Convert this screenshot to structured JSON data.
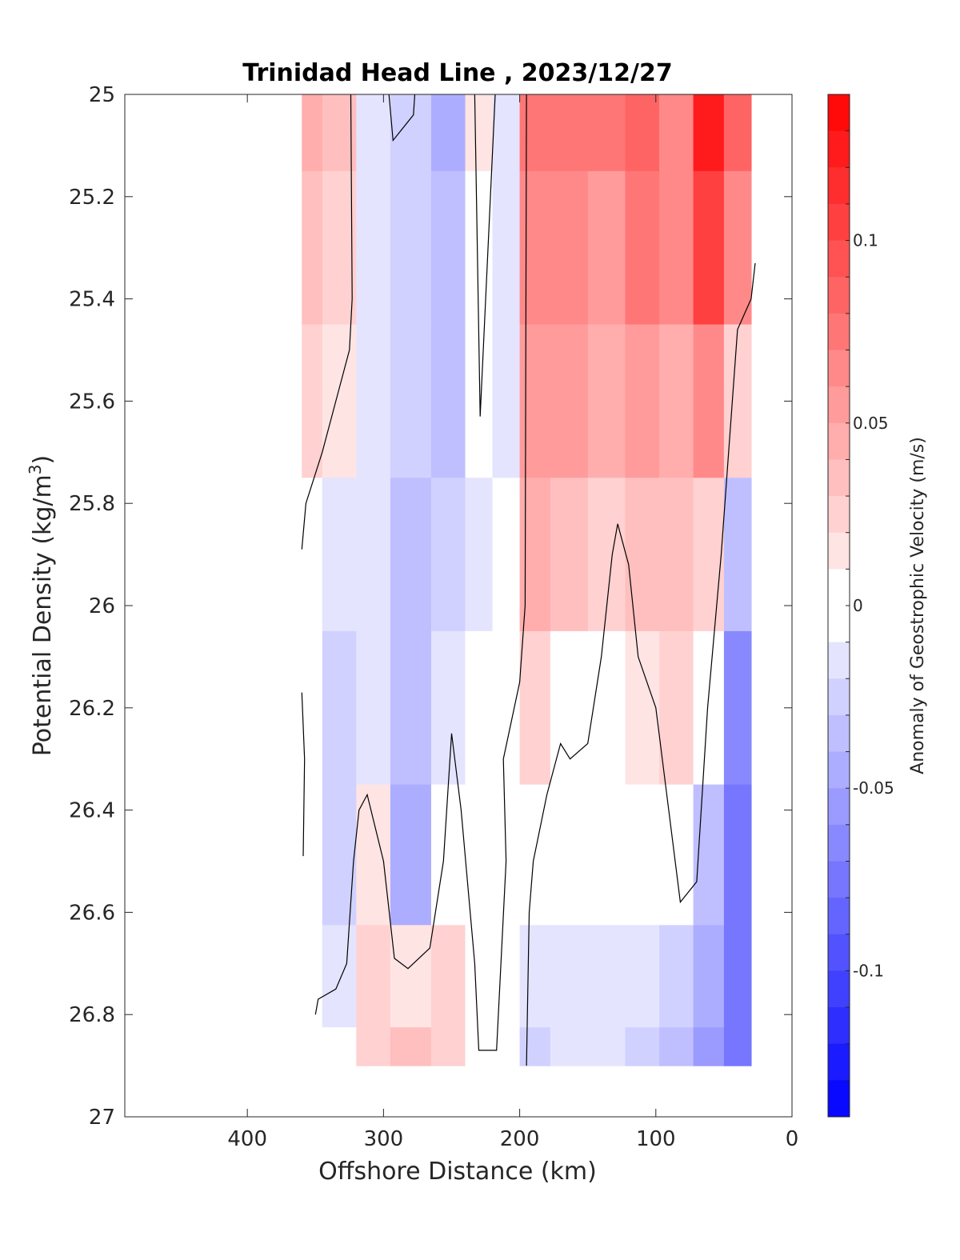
{
  "chart_data": {
    "type": "heatmap",
    "title": "Trinidad Head Line , 2023/12/27",
    "xlabel": "Offshore Distance (km)",
    "ylabel": "Potential Density (kg/m3)",
    "ylabel_base": "Potential Density (kg/m",
    "ylabel_sup": "3",
    "ylabel_end": ")",
    "colorbar_label": "Anomaly of Geostrophic Velocity (m/s)",
    "xlim": [
      490,
      0
    ],
    "ylim": [
      25,
      27
    ],
    "x_reversed": true,
    "y_reversed": true,
    "xticks": [
      400,
      300,
      200,
      100,
      0
    ],
    "xtick_labels": [
      "400",
      "300",
      "200",
      "100",
      "0"
    ],
    "yticks": [
      25,
      25.2,
      25.4,
      25.6,
      25.8,
      26,
      26.2,
      26.4,
      26.6,
      26.8,
      27
    ],
    "ytick_labels": [
      "25",
      "25.2",
      "25.4",
      "25.6",
      "25.8",
      "26",
      "26.2",
      "26.4",
      "26.6",
      "26.8",
      "27"
    ],
    "colorbar": {
      "range": [
        -0.14,
        0.14
      ],
      "ticks": [
        0.1,
        0.05,
        0,
        -0.05,
        -0.1
      ],
      "tick_labels": [
        "0.1",
        "0.05",
        "0",
        "-0.05",
        "-0.1"
      ],
      "levels": 28,
      "color_positive": "#ff0000",
      "color_negative": "#0000ff",
      "color_zero": "#ffffff"
    },
    "distance_km": [
      360,
      330,
      310,
      280,
      250,
      230,
      210,
      190,
      165,
      135,
      110,
      85,
      60,
      40
    ],
    "density": [
      25.0,
      25.3,
      25.6,
      25.9,
      26.2,
      26.5,
      26.75,
      26.9
    ],
    "velocity_anomaly": [
      [
        0.04,
        0.03,
        -0.02,
        -0.03,
        -0.05,
        0.01,
        -0.02,
        0.07,
        0.07,
        0.07,
        0.08,
        0.06,
        0.12,
        0.08
      ],
      [
        0.03,
        0.02,
        -0.02,
        -0.03,
        -0.04,
        0.0,
        -0.02,
        0.06,
        0.06,
        0.05,
        0.07,
        0.06,
        0.1,
        0.06
      ],
      [
        0.02,
        0.01,
        -0.02,
        -0.03,
        -0.04,
        -0.01,
        -0.02,
        0.05,
        0.05,
        0.04,
        0.05,
        0.04,
        0.06,
        0.02
      ],
      [
        0.0,
        -0.02,
        -0.02,
        -0.04,
        -0.03,
        -0.02,
        -0.01,
        0.04,
        0.03,
        0.02,
        0.03,
        0.03,
        0.02,
        -0.04
      ],
      [
        0.0,
        -0.03,
        -0.02,
        -0.04,
        -0.02,
        -0.01,
        -0.01,
        0.02,
        0.0,
        0.0,
        0.01,
        0.02,
        0.0,
        -0.07
      ],
      [
        0.0,
        -0.03,
        0.01,
        -0.05,
        -0.01,
        -0.01,
        0.0,
        -0.01,
        -0.01,
        -0.01,
        -0.01,
        0.0,
        -0.04,
        -0.08
      ],
      [
        -0.01,
        -0.02,
        0.02,
        0.01,
        0.02,
        0.0,
        0.0,
        -0.02,
        -0.02,
        -0.02,
        -0.02,
        -0.03,
        -0.05,
        -0.08
      ],
      [
        0.0,
        0.0,
        0.02,
        0.03,
        0.02,
        0.0,
        0.0,
        -0.03,
        -0.02,
        -0.02,
        -0.03,
        -0.04,
        -0.06,
        -0.08
      ]
    ],
    "zero_contours": [
      [
        [
          360,
          25.89
        ],
        [
          357,
          25.8
        ],
        [
          345,
          25.7
        ],
        [
          335,
          25.6
        ],
        [
          325,
          25.5
        ],
        [
          323,
          25.4
        ],
        [
          324,
          25.0
        ]
      ],
      [
        [
          360,
          26.17
        ],
        [
          358,
          26.3
        ],
        [
          359,
          26.49
        ]
      ],
      [
        [
          350,
          26.8
        ],
        [
          348,
          26.77
        ],
        [
          335,
          26.75
        ],
        [
          327,
          26.7
        ],
        [
          322,
          26.5
        ],
        [
          318,
          26.4
        ],
        [
          312,
          26.37
        ],
        [
          300,
          26.5
        ],
        [
          292,
          26.69
        ],
        [
          282,
          26.71
        ],
        [
          266,
          26.67
        ],
        [
          256,
          26.5
        ],
        [
          250,
          26.25
        ],
        [
          243,
          26.4
        ],
        [
          233,
          26.7
        ],
        [
          230,
          26.87
        ],
        [
          217,
          26.87
        ],
        [
          210,
          26.5
        ],
        [
          212,
          26.3
        ],
        [
          200,
          26.15
        ],
        [
          196,
          26.0
        ],
        [
          195,
          25.0
        ]
      ],
      [
        [
          195,
          26.9
        ],
        [
          193,
          26.6
        ],
        [
          190,
          26.5
        ],
        [
          180,
          26.37
        ],
        [
          170,
          26.27
        ],
        [
          163,
          26.3
        ],
        [
          150,
          26.27
        ],
        [
          140,
          26.1
        ],
        [
          132,
          25.9
        ],
        [
          128,
          25.84
        ],
        [
          120,
          25.92
        ],
        [
          113,
          26.1
        ],
        [
          100,
          26.2
        ],
        [
          82,
          26.58
        ],
        [
          70,
          26.54
        ],
        [
          62,
          26.2
        ],
        [
          52,
          25.9
        ],
        [
          40,
          25.46
        ],
        [
          30,
          25.4
        ],
        [
          27,
          25.33
        ]
      ],
      [
        [
          296,
          25.0
        ],
        [
          293,
          25.09
        ],
        [
          278,
          25.04
        ],
        [
          277,
          25.0
        ]
      ],
      [
        [
          233,
          25.0
        ],
        [
          229,
          25.63
        ],
        [
          218,
          25.0
        ]
      ]
    ]
  }
}
